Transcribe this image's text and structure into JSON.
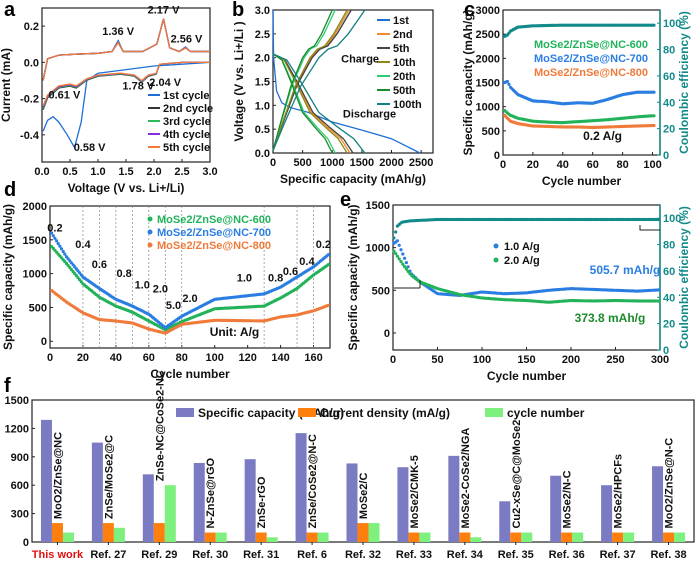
{
  "figure": {
    "panel_labels": [
      "a",
      "b",
      "c",
      "d",
      "e",
      "f"
    ]
  },
  "chart_data": [
    {
      "id": "a",
      "type": "line",
      "title": "",
      "xlabel": "Voltage (V vs. Li+/Li)",
      "ylabel": "Current (mA)",
      "xlim": [
        0.0,
        3.0
      ],
      "ylim": [
        -0.55,
        0.3
      ],
      "xticks": [
        "0.0",
        "0.5",
        "1.0",
        "1.5",
        "2.0",
        "2.5",
        "3.0"
      ],
      "yticks": [
        "-0.4",
        "-0.2",
        "0.0",
        "0.2"
      ],
      "legend_position": "bottom-right",
      "annotations": [
        "1.36 V",
        "2.17 V",
        "2.56 V",
        "1.78 V",
        "2.04 V",
        "0.61 V",
        "0.58 V"
      ],
      "series": [
        {
          "name": "1st cycle",
          "color": "#1f6fd6",
          "cathodic": [
            [
              0.02,
              -0.38
            ],
            [
              0.1,
              -0.32
            ],
            [
              0.2,
              -0.3
            ],
            [
              0.3,
              -0.33
            ],
            [
              0.45,
              -0.4
            ],
            [
              0.58,
              -0.47
            ],
            [
              0.7,
              -0.33
            ],
            [
              0.8,
              -0.1
            ],
            [
              1.0,
              -0.06
            ],
            [
              1.5,
              -0.04
            ],
            [
              2.0,
              -0.02
            ],
            [
              2.5,
              -0.01
            ],
            [
              3.0,
              0.0
            ]
          ],
          "anodic": [
            [
              0.02,
              -0.1
            ],
            [
              0.1,
              0.02
            ],
            [
              0.3,
              0.04
            ],
            [
              0.6,
              0.045
            ],
            [
              1.0,
              0.05
            ],
            [
              1.25,
              0.06
            ],
            [
              1.36,
              0.12
            ],
            [
              1.45,
              0.06
            ],
            [
              1.8,
              0.06
            ],
            [
              2.05,
              0.1
            ],
            [
              2.17,
              0.24
            ],
            [
              2.28,
              0.08
            ],
            [
              2.45,
              0.06
            ],
            [
              2.56,
              0.085
            ],
            [
              2.65,
              0.06
            ],
            [
              3.0,
              0.06
            ]
          ]
        },
        {
          "name": "2nd cycle",
          "color": "#333333"
        },
        {
          "name": "3rd cycle",
          "color": "#2dbb5a"
        },
        {
          "name": "4th cycle",
          "color": "#8a2be2"
        },
        {
          "name": "5th cycle",
          "color": "#f07a3a",
          "cathodic": [
            [
              0.02,
              -0.24
            ],
            [
              0.1,
              -0.18
            ],
            [
              0.3,
              -0.13
            ],
            [
              0.5,
              -0.12
            ],
            [
              0.61,
              -0.13
            ],
            [
              0.8,
              -0.09
            ],
            [
              1.0,
              -0.07
            ],
            [
              1.4,
              -0.06
            ],
            [
              1.65,
              -0.07
            ],
            [
              1.78,
              -0.1
            ],
            [
              1.9,
              -0.07
            ],
            [
              2.04,
              -0.06
            ],
            [
              2.1,
              -0.01
            ],
            [
              2.5,
              0.0
            ],
            [
              3.0,
              0.0
            ]
          ],
          "anodic": [
            [
              0.02,
              -0.1
            ],
            [
              0.1,
              0.02
            ],
            [
              0.3,
              0.04
            ],
            [
              0.6,
              0.045
            ],
            [
              1.0,
              0.05
            ],
            [
              1.25,
              0.06
            ],
            [
              1.36,
              0.11
            ],
            [
              1.45,
              0.06
            ],
            [
              1.8,
              0.06
            ],
            [
              2.05,
              0.1
            ],
            [
              2.17,
              0.24
            ],
            [
              2.28,
              0.08
            ],
            [
              2.45,
              0.06
            ],
            [
              2.56,
              0.08
            ],
            [
              2.65,
              0.06
            ],
            [
              3.0,
              0.06
            ]
          ]
        }
      ]
    },
    {
      "id": "b",
      "type": "line",
      "xlabel": "Specific capacity (mAh/g)",
      "ylabel": "Voltage (V vs. Li+/Li )",
      "xlim": [
        0,
        2700
      ],
      "ylim": [
        0.0,
        3.0
      ],
      "xticks": [
        "0",
        "500",
        "1000",
        "1500",
        "2000",
        "2500"
      ],
      "yticks": [
        "0.0",
        "0.5",
        "1.0",
        "1.5",
        "2.0",
        "2.5",
        "3.0"
      ],
      "annotations": [
        "Charge",
        "Discharge"
      ],
      "legend_position": "top-right",
      "series": [
        {
          "name": "1st",
          "color": "#1f6fd6",
          "discharge_end": 2480,
          "charge_end": 1320
        },
        {
          "name": "2nd",
          "color": "#f08a2a",
          "discharge_end": 1300,
          "charge_end": 1280
        },
        {
          "name": "5th",
          "color": "#444444",
          "discharge_end": 1350,
          "charge_end": 1320
        },
        {
          "name": "10th",
          "color": "#8c8a1a",
          "discharge_end": 1250,
          "charge_end": 1250
        },
        {
          "name": "20th",
          "color": "#2ecc71",
          "discharge_end": 1050,
          "charge_end": 1050
        },
        {
          "name": "50th",
          "color": "#1a8a2a",
          "discharge_end": 1000,
          "charge_end": 1000
        },
        {
          "name": "100th",
          "color": "#138080",
          "discharge_end": 1550,
          "charge_end": 1550
        }
      ]
    },
    {
      "id": "c",
      "type": "scatter",
      "xlabel": "Cycle number",
      "ylabel": "Specific capacity (mAh/g)",
      "y2label": "Coulombic efficiency (%)",
      "xlim": [
        0,
        105
      ],
      "ylim": [
        0,
        3000
      ],
      "y2lim": [
        0,
        110
      ],
      "xticks": [
        "0",
        "20",
        "40",
        "60",
        "80",
        "100"
      ],
      "yticks": [
        "0",
        "500",
        "1000",
        "1500",
        "2000",
        "2500",
        "3000"
      ],
      "y2ticks": [
        "0",
        "20",
        "40",
        "60",
        "80",
        "100"
      ],
      "annotation": "0.2 A/g",
      "legend_position": "center-left",
      "series": [
        {
          "name": "MoSe2/ZnSe@NC-600",
          "color": "#22b35a",
          "x": [
            1,
            5,
            10,
            20,
            30,
            40,
            50,
            60,
            70,
            80,
            90,
            100
          ],
          "y": [
            920,
            820,
            760,
            700,
            680,
            670,
            690,
            710,
            730,
            760,
            790,
            810
          ]
        },
        {
          "name": "MoSe2/ZnSe@NC-700",
          "color": "#2a7de1",
          "x": [
            1,
            3,
            5,
            10,
            20,
            30,
            40,
            50,
            60,
            70,
            80,
            90,
            100
          ],
          "y": [
            1500,
            1520,
            1400,
            1250,
            1120,
            1100,
            1060,
            1080,
            1070,
            1150,
            1250,
            1300,
            1300
          ]
        },
        {
          "name": "MoSe2/ZnSe@NC-800",
          "color": "#f07a3a",
          "x": [
            1,
            5,
            10,
            20,
            30,
            40,
            50,
            60,
            70,
            80,
            90,
            100
          ],
          "y": [
            820,
            700,
            650,
            600,
            590,
            580,
            580,
            570,
            580,
            590,
            600,
            610
          ]
        },
        {
          "name": "Coulombic efficiency",
          "color": "#138a8a",
          "axis": "y2",
          "x": [
            1,
            3,
            5,
            10,
            20,
            40,
            60,
            80,
            100
          ],
          "y": [
            90,
            91,
            94,
            97,
            98,
            98.5,
            98.5,
            98.5,
            98.5
          ]
        }
      ]
    },
    {
      "id": "d",
      "type": "scatter",
      "xlabel": "Cycle number",
      "ylabel": "Specific capacity (mAh/g)",
      "xlim": [
        0,
        170
      ],
      "ylim": [
        -100,
        2000
      ],
      "xticks": [
        "0",
        "20",
        "40",
        "60",
        "80",
        "100",
        "120",
        "140",
        "160"
      ],
      "yticks": [
        "0",
        "500",
        "1000",
        "1500",
        "2000"
      ],
      "rate_labels": [
        "0.2",
        "0.4",
        "0.6",
        "0.8",
        "1.0",
        "2.0",
        "5.0",
        "2.0",
        "1.0",
        "0.8",
        "0.6",
        "0.4",
        "0.2"
      ],
      "annotation": "Unit: A/g",
      "legend_position": "top-center",
      "series": [
        {
          "name": "MoSe2/ZnSe@NC-600",
          "color": "#22b35a",
          "x": [
            1,
            10,
            20,
            30,
            40,
            50,
            60,
            70,
            80,
            100,
            130,
            140,
            150,
            160,
            170
          ],
          "y": [
            1400,
            1150,
            850,
            650,
            520,
            430,
            300,
            170,
            290,
            480,
            520,
            640,
            780,
            980,
            1150
          ]
        },
        {
          "name": "MoSe2/ZnSe@NC-700",
          "color": "#2a7de1",
          "x": [
            1,
            10,
            20,
            30,
            40,
            50,
            60,
            70,
            80,
            100,
            130,
            140,
            150,
            160,
            170
          ],
          "y": [
            1600,
            1250,
            950,
            780,
            620,
            520,
            400,
            200,
            370,
            620,
            700,
            800,
            950,
            1100,
            1300
          ]
        },
        {
          "name": "MoSe2/ZnSe@NC-800",
          "color": "#f07a3a",
          "x": [
            1,
            10,
            20,
            30,
            40,
            50,
            60,
            70,
            80,
            100,
            130,
            140,
            150,
            160,
            170
          ],
          "y": [
            750,
            580,
            420,
            320,
            300,
            270,
            180,
            120,
            250,
            310,
            300,
            360,
            390,
            450,
            540
          ]
        }
      ]
    },
    {
      "id": "e",
      "type": "scatter",
      "xlabel": "Cycle number",
      "ylabel": "Specific capacity (mAh/g)",
      "y2label": "Coulombic efficiency (%)",
      "xlim": [
        0,
        300
      ],
      "ylim": [
        -200,
        1500
      ],
      "y2lim": [
        0,
        110
      ],
      "xticks": [
        "0",
        "50",
        "100",
        "150",
        "200",
        "250",
        "300"
      ],
      "yticks": [
        "0",
        "500",
        "1000",
        "1500"
      ],
      "y2ticks": [
        "0",
        "20",
        "40",
        "60",
        "80",
        "100"
      ],
      "annotations": [
        "505.7 mAh/g",
        "373.8 mAh/g"
      ],
      "legend_position": "center",
      "series": [
        {
          "name": "1.0 A/g",
          "color": "#2a7de1",
          "x": [
            1,
            5,
            10,
            20,
            30,
            50,
            75,
            100,
            125,
            150,
            175,
            200,
            225,
            250,
            275,
            300
          ],
          "y": [
            1050,
            1080,
            950,
            700,
            600,
            460,
            440,
            480,
            460,
            470,
            500,
            520,
            510,
            500,
            490,
            505.7
          ]
        },
        {
          "name": "2.0 A/g",
          "color": "#22b35a",
          "x": [
            1,
            5,
            10,
            20,
            30,
            50,
            75,
            100,
            125,
            150,
            175,
            200,
            225,
            250,
            275,
            300
          ],
          "y": [
            960,
            900,
            820,
            680,
            600,
            520,
            450,
            410,
            390,
            380,
            360,
            380,
            375,
            380,
            375,
            373.8
          ]
        },
        {
          "name": "Coulombic efficiency",
          "color": "#138a8a",
          "axis": "y2",
          "x": [
            1,
            5,
            10,
            20,
            50,
            100,
            150,
            200,
            250,
            300
          ],
          "y": [
            85,
            94,
            97,
            98,
            99,
            99,
            99,
            99,
            99,
            99
          ]
        }
      ]
    },
    {
      "id": "f",
      "type": "bar",
      "ylabel": "",
      "ylim": [
        0,
        1500
      ],
      "yticks": [
        "0",
        "300",
        "600",
        "900",
        "1200",
        "1500"
      ],
      "legend_position": "top",
      "categories": [
        "This work",
        "Ref. 27",
        "Ref. 29",
        "Ref. 30",
        "Ref. 31",
        "Ref. 6",
        "Ref. 32",
        "Ref. 33",
        "Ref. 34",
        "Ref. 35",
        "Ref. 36",
        "Ref. 37",
        "Ref. 38"
      ],
      "bar_labels": [
        "MoO2/ZnSe@NC",
        "ZnSe/MoSe2@C",
        "ZnSe-NC@CoSe2-NC",
        "N-ZnSe@rGO",
        "ZnSe-rGO",
        "ZnSe/CoSe2@N-C",
        "MoSe2/C",
        "MoSe2/CMK-5",
        "MoSe2-CoSe2/NGA",
        "Cu2-xSe@C@MoSe2",
        "MoSe2/N-C",
        "MoSe2/HPCFs",
        "MoO2/ZnSe@N-C"
      ],
      "series": [
        {
          "name": "Specific capacity (mAh/g)",
          "color": "#7b7bc4",
          "values": [
            1290,
            1050,
            715,
            835,
            875,
            1150,
            830,
            790,
            910,
            430,
            700,
            600,
            800
          ]
        },
        {
          "name": "Current density (mA/g)",
          "color": "#ff7f0e",
          "values": [
            200,
            200,
            200,
            100,
            100,
            100,
            200,
            100,
            100,
            100,
            100,
            100,
            100
          ]
        },
        {
          "name": "cycle number",
          "color": "#7ef07e",
          "values": [
            100,
            150,
            600,
            100,
            50,
            100,
            200,
            100,
            50,
            100,
            100,
            100,
            100
          ]
        }
      ],
      "highlight_category_color": "#e01010"
    }
  ]
}
